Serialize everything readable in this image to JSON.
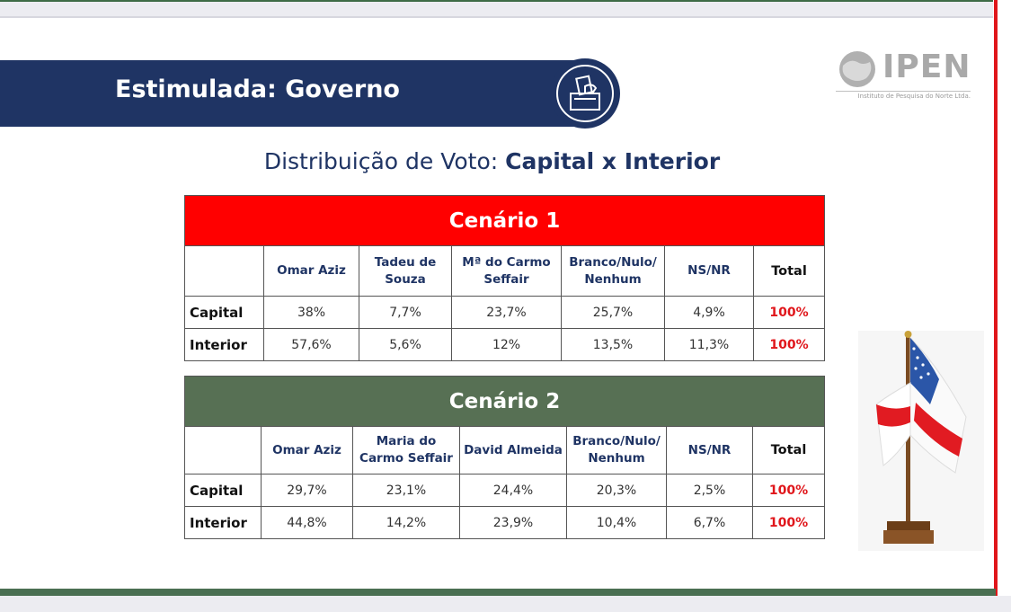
{
  "slide": {
    "title": "Estimulada: Governo",
    "subtitle_plain": "Distribuição de Voto: ",
    "subtitle_bold": "Capital x Interior",
    "logo": {
      "name": "IPEN",
      "tagline": "Instituto de Pesquisa do Norte Ltda."
    },
    "icon": "ballot-box-icon",
    "colors": {
      "navy": "#1f3464",
      "red": "#ff0000",
      "green": "#577054",
      "accent_red": "#e0161b"
    }
  },
  "scenario1": {
    "title": "Cenário 1",
    "columns": [
      "Omar Aziz",
      "Tadeu de Souza",
      "Mª do Carmo Seffair",
      "Branco/Nulo/ Nenhum",
      "NS/NR",
      "Total"
    ],
    "columns_display": [
      [
        "Omar Aziz"
      ],
      [
        "Tadeu de",
        "Souza"
      ],
      [
        "Mª do Carmo",
        "Seffair"
      ],
      [
        "Branco/Nulo/",
        "Nenhum"
      ],
      [
        "NS/NR"
      ],
      [
        "Total"
      ]
    ],
    "rows": [
      {
        "label": "Capital",
        "values": [
          "38%",
          "7,7%",
          "23,7%",
          "25,7%",
          "4,9%",
          "100%"
        ]
      },
      {
        "label": "Interior",
        "values": [
          "57,6%",
          "5,6%",
          "12%",
          "13,5%",
          "11,3%",
          "100%"
        ]
      }
    ]
  },
  "scenario2": {
    "title": "Cenário 2",
    "columns": [
      "Omar Aziz",
      "Maria do Carmo Seffair",
      "David Almeida",
      "Branco/Nulo/ Nenhum",
      "NS/NR",
      "Total"
    ],
    "columns_display": [
      [
        "Omar Aziz"
      ],
      [
        "Maria do",
        "Carmo Seffair"
      ],
      [
        "David Almeida"
      ],
      [
        "Branco/Nulo/",
        "Nenhum"
      ],
      [
        "NS/NR"
      ],
      [
        "Total"
      ]
    ],
    "rows": [
      {
        "label": "Capital",
        "values": [
          "29,7%",
          "23,1%",
          "24,4%",
          "20,3%",
          "2,5%",
          "100%"
        ]
      },
      {
        "label": "Interior",
        "values": [
          "44,8%",
          "14,2%",
          "23,9%",
          "10,4%",
          "6,7%",
          "100%"
        ]
      }
    ]
  },
  "decoration": {
    "flag": "amazonas-flag-icon"
  }
}
